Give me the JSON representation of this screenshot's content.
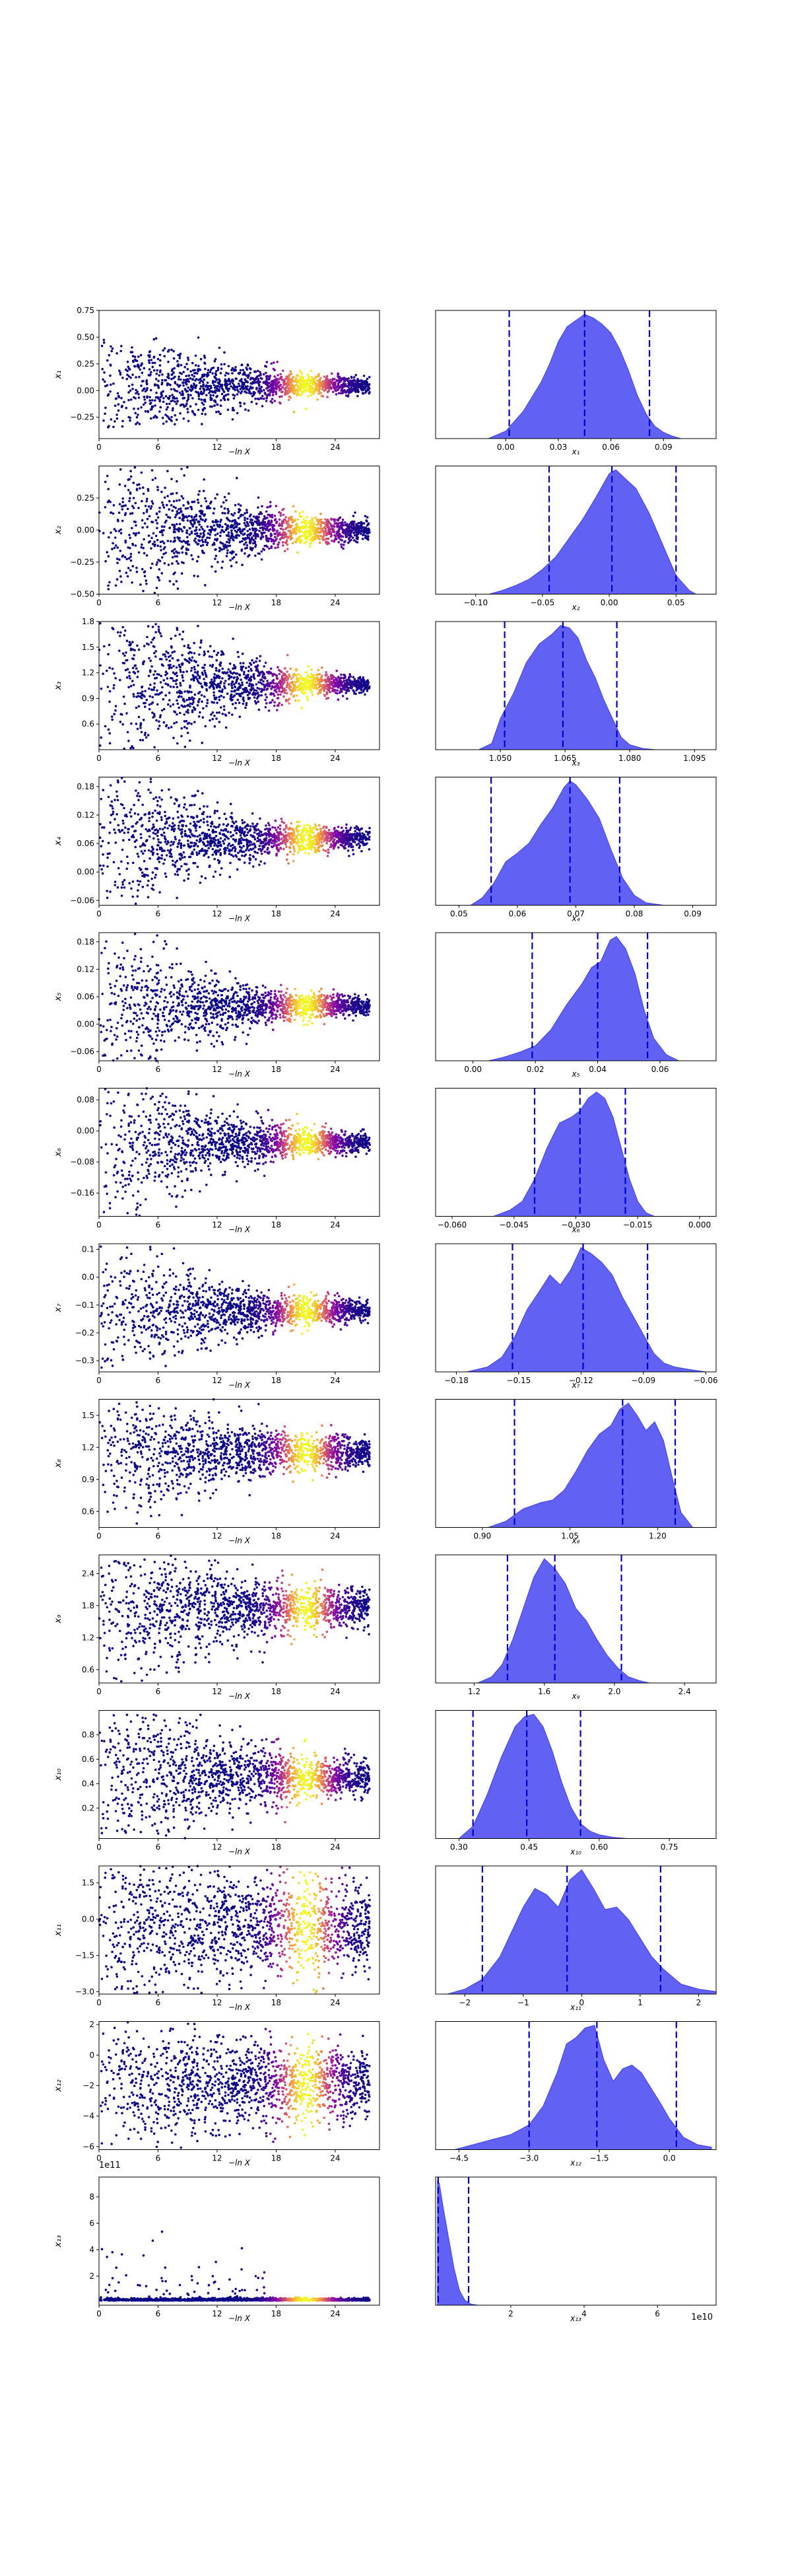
{
  "figure": {
    "sci_note_row13_left": "1e11",
    "sci_note_row13_right": "1e10"
  },
  "chart_data": [
    {
      "row": 1,
      "panel": "trace",
      "type": "scatter",
      "xlabel": "−ln X",
      "ylabel": "x₁",
      "xlim": [
        0,
        28.5
      ],
      "ylim": [
        -0.45,
        0.75
      ],
      "x_ticks": [
        "0",
        "6",
        "12",
        "18",
        "24"
      ],
      "y_ticks": [
        "−0.25",
        "0.00",
        "0.25",
        "0.50",
        "0.75"
      ],
      "start_spread": 0.4,
      "end_spread": 0.02,
      "center": 0.05,
      "y_clip": [
        -0.35,
        0.5
      ]
    },
    {
      "row": 1,
      "panel": "posterior",
      "type": "area",
      "xlabel": "x₁",
      "xlim": [
        -0.04,
        0.12
      ],
      "x_ticks": [
        "0.00",
        "0.03",
        "0.06",
        "0.09"
      ],
      "quantile_lines": [
        0.002,
        0.045,
        0.082
      ],
      "density_x": [
        -0.01,
        0.0,
        0.01,
        0.02,
        0.025,
        0.03,
        0.035,
        0.04,
        0.045,
        0.05,
        0.055,
        0.06,
        0.065,
        0.07,
        0.075,
        0.08,
        0.085,
        0.09,
        0.095,
        0.1
      ],
      "density_y": [
        0.0,
        0.06,
        0.22,
        0.45,
        0.6,
        0.78,
        0.9,
        0.95,
        1.0,
        0.97,
        0.92,
        0.85,
        0.72,
        0.55,
        0.35,
        0.2,
        0.1,
        0.05,
        0.02,
        0.0
      ]
    },
    {
      "row": 2,
      "panel": "trace",
      "type": "scatter",
      "xlabel": "−ln X",
      "ylabel": "x₂",
      "xlim": [
        0,
        28.5
      ],
      "ylim": [
        -0.5,
        0.5
      ],
      "x_ticks": [
        "0",
        "6",
        "12",
        "18",
        "24"
      ],
      "y_ticks": [
        "−0.50",
        "−0.25",
        "0.00",
        "0.25"
      ],
      "start_spread": 0.45,
      "end_spread": 0.02,
      "center": 0.0,
      "y_clip": [
        -0.5,
        0.5
      ]
    },
    {
      "row": 2,
      "panel": "posterior",
      "type": "area",
      "xlabel": "x₂",
      "xlim": [
        -0.13,
        0.08
      ],
      "x_ticks": [
        "−0.10",
        "−0.05",
        "0.00",
        "0.05"
      ],
      "quantile_lines": [
        -0.045,
        0.002,
        0.05
      ],
      "density_x": [
        -0.09,
        -0.08,
        -0.07,
        -0.06,
        -0.05,
        -0.04,
        -0.03,
        -0.02,
        -0.01,
        0.0,
        0.005,
        0.01,
        0.02,
        0.03,
        0.04,
        0.05,
        0.06,
        0.065
      ],
      "density_y": [
        0.0,
        0.03,
        0.07,
        0.12,
        0.2,
        0.3,
        0.45,
        0.6,
        0.78,
        0.97,
        1.0,
        0.95,
        0.85,
        0.65,
        0.4,
        0.15,
        0.03,
        0.0
      ]
    },
    {
      "row": 3,
      "panel": "trace",
      "type": "scatter",
      "xlabel": "−ln X",
      "ylabel": "x₃",
      "xlim": [
        0,
        28.5
      ],
      "ylim": [
        0.3,
        1.8
      ],
      "x_ticks": [
        "0",
        "6",
        "12",
        "18",
        "24"
      ],
      "y_ticks": [
        "0.6",
        "0.9",
        "1.2",
        "1.5",
        "1.8"
      ],
      "start_spread": 0.8,
      "end_spread": 0.01,
      "center": 1.06,
      "y_clip": [
        0.3,
        1.8
      ]
    },
    {
      "row": 3,
      "panel": "posterior",
      "type": "area",
      "xlabel": "x₃",
      "xlim": [
        1.035,
        1.1
      ],
      "x_ticks": [
        "1.050",
        "1.065",
        "1.080",
        "1.095"
      ],
      "quantile_lines": [
        1.051,
        1.0645,
        1.077
      ],
      "density_x": [
        1.045,
        1.048,
        1.05,
        1.053,
        1.056,
        1.059,
        1.062,
        1.064,
        1.066,
        1.068,
        1.07,
        1.072,
        1.074,
        1.076,
        1.078,
        1.08,
        1.083,
        1.086
      ],
      "density_y": [
        0.0,
        0.05,
        0.25,
        0.45,
        0.7,
        0.85,
        0.93,
        1.0,
        0.98,
        0.9,
        0.72,
        0.58,
        0.4,
        0.25,
        0.1,
        0.04,
        0.01,
        0.0
      ]
    },
    {
      "row": 4,
      "panel": "trace",
      "type": "scatter",
      "xlabel": "−ln X",
      "ylabel": "x₄",
      "xlim": [
        0,
        28.5
      ],
      "ylim": [
        -0.07,
        0.2
      ],
      "x_ticks": [
        "0",
        "6",
        "12",
        "18",
        "24"
      ],
      "y_ticks": [
        "−0.06",
        "0.00",
        "0.06",
        "0.12",
        "0.18"
      ],
      "start_spread": 0.1,
      "end_spread": 0.006,
      "center": 0.07,
      "y_clip": [
        -0.07,
        0.2
      ]
    },
    {
      "row": 4,
      "panel": "posterior",
      "type": "area",
      "xlabel": "x₄",
      "xlim": [
        0.046,
        0.094
      ],
      "x_ticks": [
        "0.05",
        "0.06",
        "0.07",
        "0.08",
        "0.09"
      ],
      "quantile_lines": [
        0.0555,
        0.069,
        0.0775
      ],
      "density_x": [
        0.052,
        0.054,
        0.056,
        0.058,
        0.06,
        0.062,
        0.064,
        0.066,
        0.068,
        0.069,
        0.07,
        0.072,
        0.074,
        0.076,
        0.078,
        0.08,
        0.082,
        0.085
      ],
      "density_y": [
        0.0,
        0.06,
        0.18,
        0.35,
        0.42,
        0.5,
        0.65,
        0.78,
        0.95,
        1.0,
        0.97,
        0.85,
        0.7,
        0.45,
        0.22,
        0.08,
        0.02,
        0.0
      ]
    },
    {
      "row": 5,
      "panel": "trace",
      "type": "scatter",
      "xlabel": "−ln X",
      "ylabel": "x₅",
      "xlim": [
        0,
        28.5
      ],
      "ylim": [
        -0.08,
        0.2
      ],
      "x_ticks": [
        "0",
        "6",
        "12",
        "18",
        "24"
      ],
      "y_ticks": [
        "−0.06",
        "0.00",
        "0.06",
        "0.12",
        "0.18"
      ],
      "start_spread": 0.1,
      "end_spread": 0.006,
      "center": 0.04,
      "y_clip": [
        -0.08,
        0.2
      ]
    },
    {
      "row": 5,
      "panel": "posterior",
      "type": "area",
      "xlabel": "x₅",
      "xlim": [
        -0.012,
        0.078
      ],
      "x_ticks": [
        "0.00",
        "0.02",
        "0.04",
        "0.06"
      ],
      "quantile_lines": [
        0.019,
        0.04,
        0.056
      ],
      "density_x": [
        0.005,
        0.01,
        0.015,
        0.02,
        0.025,
        0.03,
        0.035,
        0.038,
        0.041,
        0.044,
        0.046,
        0.049,
        0.052,
        0.055,
        0.058,
        0.062,
        0.066
      ],
      "density_y": [
        0.0,
        0.03,
        0.07,
        0.12,
        0.25,
        0.45,
        0.62,
        0.75,
        0.8,
        0.97,
        1.0,
        0.9,
        0.7,
        0.4,
        0.18,
        0.05,
        0.0
      ]
    },
    {
      "row": 6,
      "panel": "trace",
      "type": "scatter",
      "xlabel": "−ln X",
      "ylabel": "x₆",
      "xlim": [
        0,
        28.5
      ],
      "ylim": [
        -0.22,
        0.11
      ],
      "x_ticks": [
        "0",
        "6",
        "12",
        "18",
        "24"
      ],
      "y_ticks": [
        "−0.16",
        "−0.08",
        "0.00",
        "0.08"
      ],
      "start_spread": 0.14,
      "end_spread": 0.006,
      "center": -0.03,
      "y_clip": [
        -0.22,
        0.11
      ]
    },
    {
      "row": 6,
      "panel": "posterior",
      "type": "area",
      "xlabel": "x₆",
      "xlim": [
        -0.064,
        0.004
      ],
      "x_ticks": [
        "−0.060",
        "−0.045",
        "−0.030",
        "−0.015",
        "0.000"
      ],
      "quantile_lines": [
        -0.04,
        -0.029,
        -0.018
      ],
      "density_x": [
        -0.05,
        -0.046,
        -0.043,
        -0.04,
        -0.037,
        -0.034,
        -0.031,
        -0.029,
        -0.027,
        -0.025,
        -0.023,
        -0.021,
        -0.019,
        -0.017,
        -0.015,
        -0.013,
        -0.011
      ],
      "density_y": [
        0.0,
        0.05,
        0.12,
        0.3,
        0.55,
        0.75,
        0.8,
        0.85,
        0.95,
        1.0,
        0.95,
        0.8,
        0.55,
        0.3,
        0.12,
        0.03,
        0.0
      ]
    },
    {
      "row": 7,
      "panel": "trace",
      "type": "scatter",
      "xlabel": "−ln X",
      "ylabel": "x₇",
      "xlim": [
        0,
        28.5
      ],
      "ylim": [
        -0.34,
        0.12
      ],
      "x_ticks": [
        "0",
        "6",
        "12",
        "18",
        "24"
      ],
      "y_ticks": [
        "−0.3",
        "−0.2",
        "−0.1",
        "0.0",
        "0.1"
      ],
      "start_spread": 0.17,
      "end_spread": 0.012,
      "center": -0.12,
      "y_clip": [
        -0.34,
        0.12
      ]
    },
    {
      "row": 7,
      "panel": "posterior",
      "type": "area",
      "xlabel": "x₇",
      "xlim": [
        -0.19,
        -0.055
      ],
      "x_ticks": [
        "−0.18",
        "−0.15",
        "−0.12",
        "−0.09",
        "−0.06"
      ],
      "quantile_lines": [
        -0.153,
        -0.119,
        -0.088
      ],
      "density_x": [
        -0.175,
        -0.165,
        -0.158,
        -0.152,
        -0.146,
        -0.14,
        -0.135,
        -0.13,
        -0.125,
        -0.12,
        -0.115,
        -0.11,
        -0.105,
        -0.1,
        -0.095,
        -0.09,
        -0.085,
        -0.08,
        -0.075,
        -0.068,
        -0.06
      ],
      "density_y": [
        0.0,
        0.04,
        0.12,
        0.28,
        0.5,
        0.65,
        0.78,
        0.7,
        0.82,
        1.0,
        0.95,
        0.88,
        0.78,
        0.6,
        0.45,
        0.3,
        0.15,
        0.07,
        0.04,
        0.02,
        0.0
      ]
    },
    {
      "row": 8,
      "panel": "trace",
      "type": "scatter",
      "xlabel": "−ln X",
      "ylabel": "x₈",
      "xlim": [
        0,
        28.5
      ],
      "ylim": [
        0.45,
        1.65
      ],
      "x_ticks": [
        "0",
        "6",
        "12",
        "18",
        "24"
      ],
      "y_ticks": [
        "0.6",
        "0.9",
        "1.2",
        "1.5"
      ],
      "start_spread": 0.45,
      "end_spread": 0.05,
      "center": 1.15,
      "y_clip": [
        0.45,
        1.65
      ]
    },
    {
      "row": 8,
      "panel": "posterior",
      "type": "area",
      "xlabel": "x₈",
      "xlim": [
        0.82,
        1.3
      ],
      "x_ticks": [
        "0.90",
        "1.05",
        "1.20"
      ],
      "quantile_lines": [
        0.955,
        1.14,
        1.23
      ],
      "density_x": [
        0.91,
        0.94,
        0.97,
        1.0,
        1.02,
        1.04,
        1.06,
        1.08,
        1.1,
        1.12,
        1.135,
        1.15,
        1.165,
        1.18,
        1.195,
        1.21,
        1.225,
        1.24,
        1.26
      ],
      "density_y": [
        0.0,
        0.05,
        0.15,
        0.2,
        0.22,
        0.3,
        0.45,
        0.62,
        0.75,
        0.82,
        0.95,
        1.0,
        0.9,
        0.78,
        0.85,
        0.7,
        0.4,
        0.12,
        0.0
      ]
    },
    {
      "row": 9,
      "panel": "trace",
      "type": "scatter",
      "xlabel": "−ln X",
      "ylabel": "x₉",
      "xlim": [
        0,
        28.5
      ],
      "ylim": [
        0.35,
        2.75
      ],
      "x_ticks": [
        "0",
        "6",
        "12",
        "18",
        "24"
      ],
      "y_ticks": [
        "0.6",
        "1.2",
        "1.8",
        "2.4"
      ],
      "start_spread": 0.85,
      "end_spread": 0.15,
      "center": 1.75,
      "y_clip": [
        0.35,
        2.75
      ]
    },
    {
      "row": 9,
      "panel": "posterior",
      "type": "area",
      "xlabel": "x₉",
      "xlim": [
        0.98,
        2.58
      ],
      "x_ticks": [
        "1.2",
        "1.6",
        "2.0",
        "2.4"
      ],
      "quantile_lines": [
        1.39,
        1.66,
        2.04
      ],
      "density_x": [
        1.22,
        1.3,
        1.36,
        1.42,
        1.48,
        1.54,
        1.6,
        1.66,
        1.72,
        1.78,
        1.84,
        1.9,
        1.96,
        2.02,
        2.08,
        2.14,
        2.2
      ],
      "density_y": [
        0.0,
        0.05,
        0.15,
        0.35,
        0.6,
        0.85,
        1.0,
        0.92,
        0.8,
        0.6,
        0.5,
        0.35,
        0.22,
        0.12,
        0.05,
        0.02,
        0.0
      ]
    },
    {
      "row": 10,
      "panel": "trace",
      "type": "scatter",
      "xlabel": "−ln X",
      "ylabel": "x₁₀",
      "xlim": [
        0,
        28.5
      ],
      "ylim": [
        -0.05,
        1.0
      ],
      "x_ticks": [
        "0",
        "6",
        "12",
        "18",
        "24"
      ],
      "y_ticks": [
        "0.2",
        "0.4",
        "0.6",
        "0.8"
      ],
      "start_spread": 0.42,
      "end_spread": 0.06,
      "center": 0.45,
      "y_clip": [
        -0.05,
        1.0
      ]
    },
    {
      "row": 10,
      "panel": "posterior",
      "type": "area",
      "xlabel": "x₁₀",
      "xlim": [
        0.25,
        0.85
      ],
      "x_ticks": [
        "0.30",
        "0.45",
        "0.60",
        "0.75"
      ],
      "quantile_lines": [
        0.33,
        0.445,
        0.56
      ],
      "density_x": [
        0.3,
        0.33,
        0.36,
        0.39,
        0.42,
        0.44,
        0.46,
        0.48,
        0.5,
        0.52,
        0.54,
        0.56,
        0.58,
        0.6,
        0.63,
        0.66
      ],
      "density_y": [
        0.0,
        0.1,
        0.35,
        0.65,
        0.9,
        0.98,
        1.0,
        0.9,
        0.7,
        0.45,
        0.25,
        0.12,
        0.06,
        0.03,
        0.01,
        0.0
      ]
    },
    {
      "row": 11,
      "panel": "trace",
      "type": "scatter",
      "xlabel": "−ln X",
      "ylabel": "x₁₁",
      "xlim": [
        0,
        28.5
      ],
      "ylim": [
        -3.1,
        2.2
      ],
      "x_ticks": [
        "0",
        "6",
        "12",
        "18",
        "24"
      ],
      "y_ticks": [
        "−3.0",
        "−1.5",
        "0.0",
        "1.5"
      ],
      "start_spread": 1.6,
      "end_spread": 0.9,
      "center": -0.3,
      "y_clip": [
        -3.1,
        2.2
      ]
    },
    {
      "row": 11,
      "panel": "posterior",
      "type": "area",
      "xlabel": "x₁₁",
      "xlim": [
        -2.5,
        2.3
      ],
      "x_ticks": [
        "−2",
        "−1",
        "0",
        "1",
        "2"
      ],
      "quantile_lines": [
        -1.7,
        -0.25,
        1.35
      ],
      "density_x": [
        -2.3,
        -2.0,
        -1.7,
        -1.4,
        -1.2,
        -1.0,
        -0.8,
        -0.6,
        -0.4,
        -0.2,
        0.0,
        0.2,
        0.4,
        0.6,
        0.8,
        1.0,
        1.2,
        1.4,
        1.7,
        2.0,
        2.3
      ],
      "density_y": [
        0.0,
        0.04,
        0.12,
        0.3,
        0.5,
        0.7,
        0.85,
        0.8,
        0.7,
        0.92,
        1.0,
        0.85,
        0.68,
        0.7,
        0.6,
        0.45,
        0.3,
        0.2,
        0.08,
        0.04,
        0.02
      ]
    },
    {
      "row": 12,
      "panel": "trace",
      "type": "scatter",
      "xlabel": "−ln X",
      "ylabel": "x₁₂",
      "xlim": [
        0,
        28.5
      ],
      "ylim": [
        -6.2,
        2.2
      ],
      "x_ticks": [
        "0",
        "6",
        "12",
        "18",
        "24"
      ],
      "y_ticks": [
        "−6",
        "−4",
        "−2",
        "0",
        "2"
      ],
      "start_spread": 2.0,
      "end_spread": 1.1,
      "center": -1.8,
      "y_clip": [
        -6.2,
        2.2
      ]
    },
    {
      "row": 12,
      "panel": "posterior",
      "type": "area",
      "xlabel": "x₁₂",
      "xlim": [
        -5.0,
        1.0
      ],
      "x_ticks": [
        "−4.5",
        "−3.0",
        "−1.5",
        "0.0"
      ],
      "quantile_lines": [
        -3.0,
        -1.55,
        0.15
      ],
      "density_x": [
        -4.6,
        -4.2,
        -3.8,
        -3.4,
        -3.0,
        -2.7,
        -2.4,
        -2.2,
        -2.0,
        -1.8,
        -1.6,
        -1.4,
        -1.2,
        -1.0,
        -0.8,
        -0.6,
        -0.4,
        -0.2,
        0.0,
        0.3,
        0.6,
        0.9
      ],
      "density_y": [
        0.0,
        0.04,
        0.08,
        0.12,
        0.2,
        0.35,
        0.62,
        0.85,
        0.9,
        0.98,
        1.0,
        0.72,
        0.55,
        0.65,
        0.68,
        0.62,
        0.5,
        0.38,
        0.25,
        0.1,
        0.04,
        0.02
      ]
    },
    {
      "row": 13,
      "panel": "trace",
      "type": "scatter",
      "xlabel": "−ln X",
      "ylabel": "x₁₃",
      "xlim": [
        0,
        28.5
      ],
      "ylim": [
        -0.2,
        9.5
      ],
      "x_ticks": [
        "0",
        "6",
        "12",
        "18",
        "24"
      ],
      "y_ticks": [
        "2",
        "4",
        "6",
        "8"
      ],
      "center": 0.15,
      "end_spread": 0.05,
      "start_spread": 0.0,
      "heavy_tail": true,
      "y_clip": [
        -0.2,
        9.5
      ]
    },
    {
      "row": 13,
      "panel": "posterior",
      "type": "area",
      "xlabel": "x₁₃",
      "xlim": [
        -0.05,
        7.6
      ],
      "x_ticks": [
        "2",
        "4",
        "6"
      ],
      "quantile_lines": [
        0.02,
        0.85
      ],
      "density_x": [
        0.0,
        0.05,
        0.15,
        0.3,
        0.45,
        0.6,
        0.75,
        0.9,
        1.1
      ],
      "density_y": [
        1.0,
        0.98,
        0.8,
        0.55,
        0.3,
        0.12,
        0.04,
        0.01,
        0.0
      ]
    }
  ]
}
